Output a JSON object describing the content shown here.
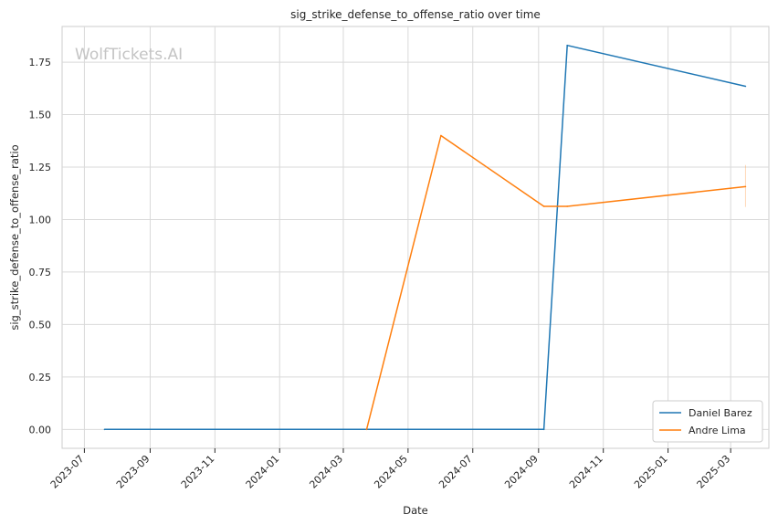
{
  "chart_data": {
    "type": "line",
    "title": "sig_strike_defense_to_offense_ratio over time",
    "xlabel": "Date",
    "ylabel": "sig_strike_defense_to_offense_ratio",
    "watermark": "WolfTickets.AI",
    "x_ticks": [
      "2023-07",
      "2023-09",
      "2023-11",
      "2024-01",
      "2024-03",
      "2024-05",
      "2024-07",
      "2024-09",
      "2024-11",
      "2025-01",
      "2025-03"
    ],
    "y_ticks": [
      "0.00",
      "0.25",
      "0.50",
      "0.75",
      "1.00",
      "1.25",
      "1.50",
      "1.75"
    ],
    "xlim": [
      "2023-06-10",
      "2025-04-06"
    ],
    "ylim": [
      -0.09,
      1.92
    ],
    "grid": true,
    "legend_position": "lower-right",
    "series": [
      {
        "name": "Daniel Barez",
        "color": "#1f77b4",
        "points": [
          {
            "x": "2023-07-20",
            "y": 0.0
          },
          {
            "x": "2024-09-06",
            "y": 0.0
          },
          {
            "x": "2024-09-28",
            "y": 1.83
          },
          {
            "x": "2025-03-15",
            "y": 1.635
          }
        ]
      },
      {
        "name": "Andre Lima",
        "color": "#ff7f0e",
        "points": [
          {
            "x": "2024-03-23",
            "y": 0.0
          },
          {
            "x": "2024-06-01",
            "y": 1.4
          },
          {
            "x": "2024-09-06",
            "y": 1.063
          },
          {
            "x": "2024-09-28",
            "y": 1.063
          },
          {
            "x": "2025-03-15",
            "y": 1.157
          }
        ],
        "error_bar": {
          "x": "2025-03-15",
          "low": 1.06,
          "high": 1.26
        }
      }
    ]
  }
}
